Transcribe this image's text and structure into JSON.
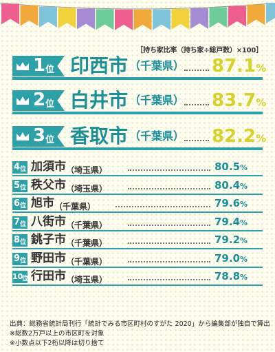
{
  "header_note": "［持ち家比率（持ち家÷総戸数）×100］",
  "colors": {
    "teal": "#2ea0a8",
    "city_teal": "#1b8f99",
    "yellow": "#d7d12a",
    "flags": [
      "#ee5e8e",
      "#f2a93b",
      "#7fc4d9",
      "#f2d23a",
      "#a48bd3",
      "#6ecb9a"
    ]
  },
  "chart_data": {
    "type": "table",
    "title": "",
    "rank_suffix": "位",
    "unit": "%",
    "rows": [
      {
        "rank": "1",
        "city": "印西市",
        "pref": "（千葉県）",
        "value": "87.1"
      },
      {
        "rank": "2",
        "city": "白井市",
        "pref": "（千葉県）",
        "value": "83.7"
      },
      {
        "rank": "3",
        "city": "香取市",
        "pref": "（千葉県）",
        "value": "82.2"
      },
      {
        "rank": "4",
        "city": "加須市",
        "pref": "（埼玉県）",
        "value": "80.5"
      },
      {
        "rank": "5",
        "city": "秩父市",
        "pref": "（埼玉県）",
        "value": "80.4"
      },
      {
        "rank": "6",
        "city": "旭市",
        "pref": "（千葉県）",
        "value": "79.6"
      },
      {
        "rank": "7",
        "city": "八街市",
        "pref": "（千葉県）",
        "value": "79.4"
      },
      {
        "rank": "8",
        "city": "銚子市",
        "pref": "（千葉県）",
        "value": "79.2"
      },
      {
        "rank": "9",
        "city": "野田市",
        "pref": "（千葉県）",
        "value": "79.0"
      },
      {
        "rank": "10",
        "city": "行田市",
        "pref": "（埼玉県）",
        "value": "78.8"
      }
    ]
  },
  "footer": {
    "source": "出典：総務省統計局刊行「統計でみる市区町村のすがた 2020」から編集部が独自で算出",
    "note1": "※総数2万戸以上の市区町を対象",
    "note2": "※小数点以下2桁以降は切り捨て"
  }
}
